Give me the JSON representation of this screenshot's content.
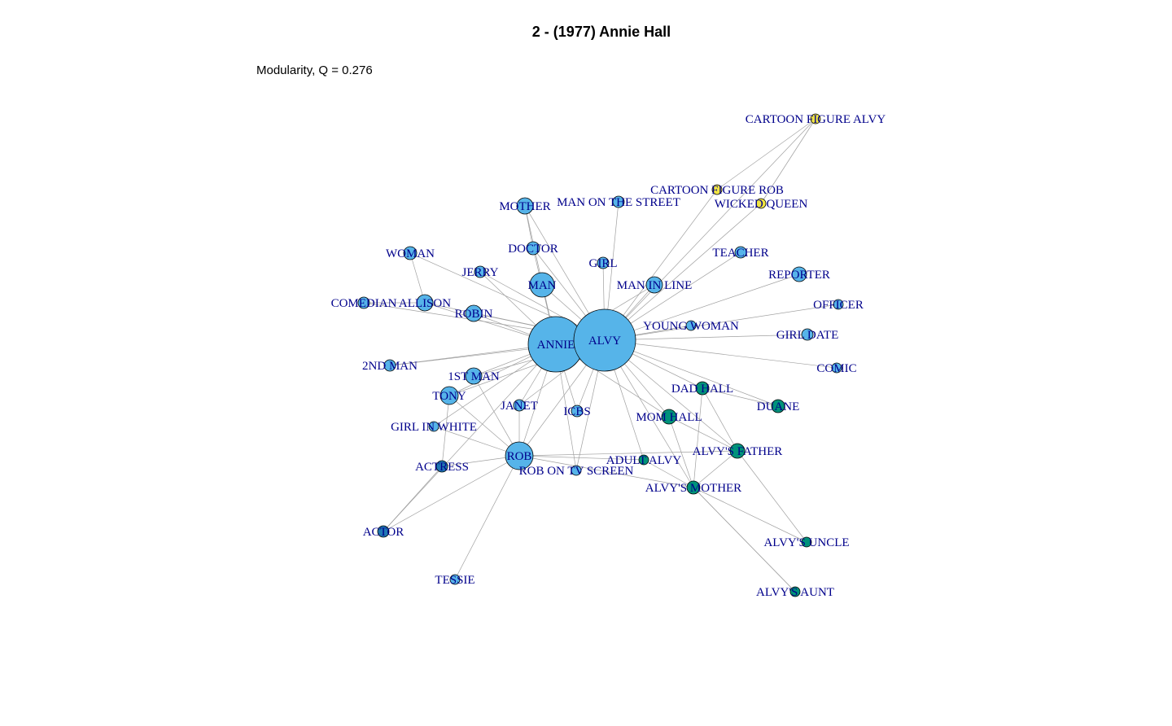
{
  "title": "2 - (1977) Annie Hall",
  "subtitle": "Modularity, Q = 0.276",
  "colors": {
    "blue": "#56b4e9",
    "darkblue": "#1f78b4",
    "green": "#00927a",
    "yellow": "#f0e442",
    "edge": "#a0a0a0",
    "label": "#00008b"
  },
  "nodes": [
    {
      "id": "ALVY",
      "group": "blue"
    },
    {
      "id": "ANNIE",
      "group": "blue"
    },
    {
      "id": "ROB",
      "group": "blue"
    },
    {
      "id": "MAN",
      "group": "blue"
    },
    {
      "id": "ALLISON",
      "group": "blue"
    },
    {
      "id": "ROBIN",
      "group": "blue"
    },
    {
      "id": "1ST MAN",
      "group": "blue"
    },
    {
      "id": "TONY",
      "group": "blue"
    },
    {
      "id": "MAN IN LINE",
      "group": "blue"
    },
    {
      "id": "MOTHER",
      "group": "blue"
    },
    {
      "id": "DOCTOR",
      "group": "blue"
    },
    {
      "id": "GIRL",
      "group": "blue"
    },
    {
      "id": "MAN ON THE STREET",
      "group": "blue"
    },
    {
      "id": "JERRY",
      "group": "blue"
    },
    {
      "id": "WOMAN",
      "group": "blue"
    },
    {
      "id": "COMEDIAN",
      "group": "blue"
    },
    {
      "id": "2ND MAN",
      "group": "blue"
    },
    {
      "id": "JANET",
      "group": "blue"
    },
    {
      "id": "ICBS",
      "group": "blue"
    },
    {
      "id": "ROB ON TV SCREEN",
      "group": "blue"
    },
    {
      "id": "GIRL IN WHITE",
      "group": "blue"
    },
    {
      "id": "ACTRESS",
      "group": "darkblue"
    },
    {
      "id": "ACTOR",
      "group": "darkblue"
    },
    {
      "id": "TESSIE",
      "group": "blue"
    },
    {
      "id": "YOUNG WOMAN",
      "group": "blue"
    },
    {
      "id": "TEACHER",
      "group": "blue"
    },
    {
      "id": "REPORTER",
      "group": "blue"
    },
    {
      "id": "OFFICER",
      "group": "blue"
    },
    {
      "id": "GIRL DATE",
      "group": "blue"
    },
    {
      "id": "COMIC",
      "group": "blue"
    },
    {
      "id": "DAD HALL",
      "group": "green"
    },
    {
      "id": "MOM HALL",
      "group": "green"
    },
    {
      "id": "DUANE",
      "group": "green"
    },
    {
      "id": "ALVY'S FATHER",
      "group": "green"
    },
    {
      "id": "ADULT ALVY",
      "group": "green"
    },
    {
      "id": "ALVY'S MOTHER",
      "group": "green"
    },
    {
      "id": "ALVY'S UNCLE",
      "group": "green"
    },
    {
      "id": "ALVY'S AUNT",
      "group": "green"
    },
    {
      "id": "CARTOON FIGURE ALVY",
      "group": "yellow"
    },
    {
      "id": "CARTOON FIGURE ROB",
      "group": "yellow"
    },
    {
      "id": "WICKED QUEEN",
      "group": "yellow"
    }
  ],
  "edges": [
    [
      "ALVY",
      "ANNIE"
    ],
    [
      "ALVY",
      "ROB"
    ],
    [
      "ALVY",
      "MAN"
    ],
    [
      "ALVY",
      "ALLISON"
    ],
    [
      "ALVY",
      "ROBIN"
    ],
    [
      "ALVY",
      "MAN IN LINE"
    ],
    [
      "ALVY",
      "MOTHER"
    ],
    [
      "ALVY",
      "DOCTOR"
    ],
    [
      "ALVY",
      "GIRL"
    ],
    [
      "ALVY",
      "MAN ON THE STREET"
    ],
    [
      "ALVY",
      "JERRY"
    ],
    [
      "ALVY",
      "COMEDIAN"
    ],
    [
      "ALVY",
      "YOUNG WOMAN"
    ],
    [
      "ALVY",
      "TEACHER"
    ],
    [
      "ALVY",
      "REPORTER"
    ],
    [
      "ALVY",
      "OFFICER"
    ],
    [
      "ALVY",
      "GIRL DATE"
    ],
    [
      "ALVY",
      "COMIC"
    ],
    [
      "ALVY",
      "DAD HALL"
    ],
    [
      "ALVY",
      "MOM HALL"
    ],
    [
      "ALVY",
      "DUANE"
    ],
    [
      "ALVY",
      "ALVY'S FATHER"
    ],
    [
      "ALVY",
      "ALVY'S MOTHER"
    ],
    [
      "ALVY",
      "ADULT ALVY"
    ],
    [
      "ALVY",
      "ICBS"
    ],
    [
      "ALVY",
      "JANET"
    ],
    [
      "ALVY",
      "1ST MAN"
    ],
    [
      "ALVY",
      "TONY"
    ],
    [
      "ALVY",
      "ROB ON TV SCREEN"
    ],
    [
      "ALVY",
      "CARTOON FIGURE ALVY"
    ],
    [
      "ALVY",
      "WICKED QUEEN"
    ],
    [
      "ALVY",
      "2ND MAN"
    ],
    [
      "ANNIE",
      "ROB"
    ],
    [
      "ANNIE",
      "MAN"
    ],
    [
      "ANNIE",
      "ALLISON"
    ],
    [
      "ANNIE",
      "ROBIN"
    ],
    [
      "ANNIE",
      "MOTHER"
    ],
    [
      "ANNIE",
      "DOCTOR"
    ],
    [
      "ANNIE",
      "JERRY"
    ],
    [
      "ANNIE",
      "2ND MAN"
    ],
    [
      "ANNIE",
      "1ST MAN"
    ],
    [
      "ANNIE",
      "TONY"
    ],
    [
      "ANNIE",
      "JANET"
    ],
    [
      "ANNIE",
      "ICBS"
    ],
    [
      "ANNIE",
      "GIRL IN WHITE"
    ],
    [
      "ANNIE",
      "ACTOR"
    ],
    [
      "ANNIE",
      "MOM HALL"
    ],
    [
      "ANNIE",
      "ROB ON TV SCREEN"
    ],
    [
      "ANNIE",
      "MAN IN LINE"
    ],
    [
      "ROB",
      "1ST MAN"
    ],
    [
      "ROB",
      "TONY"
    ],
    [
      "ROB",
      "JANET"
    ],
    [
      "ROB",
      "ACTRESS"
    ],
    [
      "ROB",
      "ACTOR"
    ],
    [
      "ROB",
      "TESSIE"
    ],
    [
      "ROB",
      "ALVY'S MOTHER"
    ],
    [
      "ROB",
      "ADULT ALVY"
    ],
    [
      "ROB",
      "GIRL IN WHITE"
    ],
    [
      "ROB",
      "ALVY'S FATHER"
    ],
    [
      "ALLISON",
      "WOMAN"
    ],
    [
      "ALLISON",
      "COMEDIAN"
    ],
    [
      "WOMAN",
      "ALVY"
    ],
    [
      "MOTHER",
      "DOCTOR"
    ],
    [
      "ACTRESS",
      "ACTOR"
    ],
    [
      "TONY",
      "ACTRESS"
    ],
    [
      "DAD HALL",
      "ALVY'S FATHER"
    ],
    [
      "DAD HALL",
      "DUANE"
    ],
    [
      "DAD HALL",
      "ALVY'S MOTHER"
    ],
    [
      "MOM HALL",
      "ALVY'S MOTHER"
    ],
    [
      "MOM HALL",
      "ALVY'S FATHER"
    ],
    [
      "ALVY'S FATHER",
      "ALVY'S MOTHER"
    ],
    [
      "ALVY'S FATHER",
      "ALVY'S UNCLE"
    ],
    [
      "ALVY'S MOTHER",
      "ALVY'S UNCLE"
    ],
    [
      "ALVY'S MOTHER",
      "ALVY'S AUNT"
    ],
    [
      "ADULT ALVY",
      "ALVY'S MOTHER"
    ],
    [
      "ALVY'S MOTHER",
      "ALVY'S AUNT"
    ],
    [
      "CARTOON FIGURE ALVY",
      "CARTOON FIGURE ROB"
    ],
    [
      "CARTOON FIGURE ALVY",
      "WICKED QUEEN"
    ],
    [
      "CARTOON FIGURE ROB",
      "ALVY"
    ]
  ]
}
